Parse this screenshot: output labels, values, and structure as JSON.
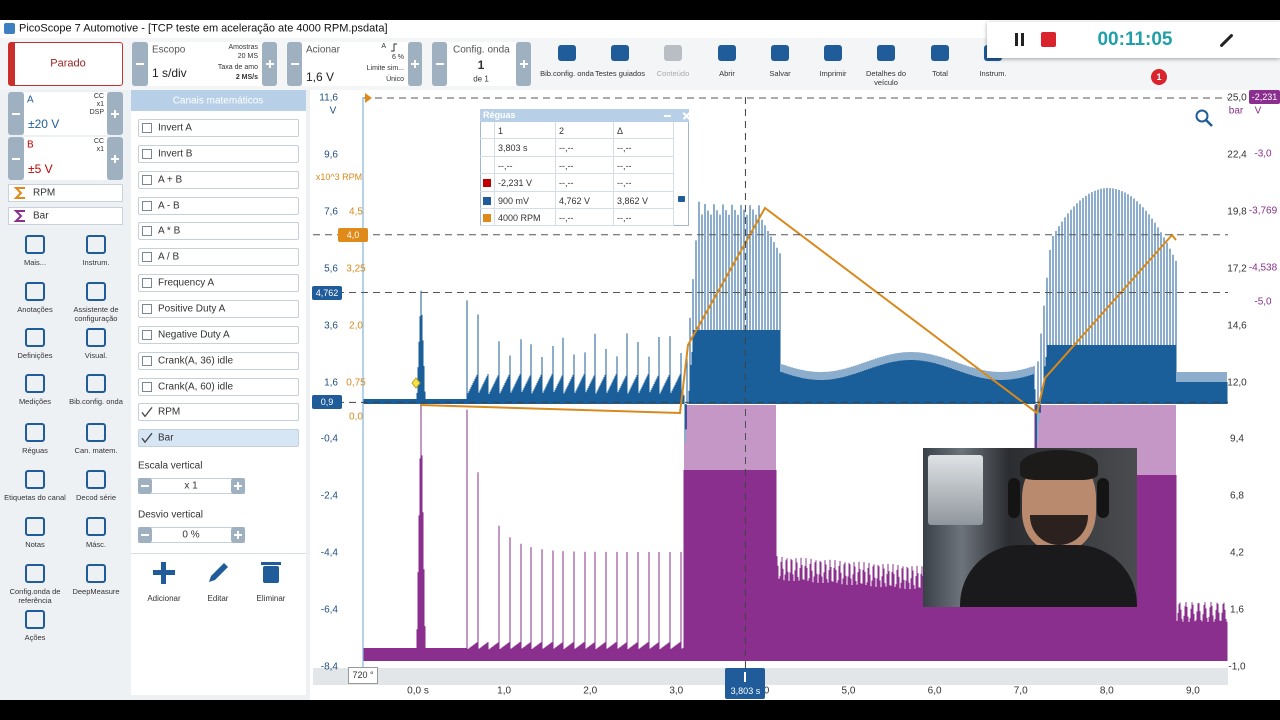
{
  "window": {
    "title": "PicoScope 7 Automotive - [TCP  teste em aceleração ate 4000 RPM.psdata]"
  },
  "recording": {
    "time": "00:11:05"
  },
  "toolbar": {
    "status": "Parado",
    "scope": {
      "label": "Escopo",
      "timebase": "1 s/div",
      "samples_label": "Amostras",
      "samples": "20 MS",
      "rate_label": "Taxa de amo",
      "rate": "2 MS/s"
    },
    "trigger": {
      "label": "Acionar",
      "channel": "A",
      "percent": "6 %",
      "level": "1,6 V",
      "limit": "Limite sim...",
      "mode": "Único"
    },
    "waveform": {
      "label": "Config. onda",
      "index": "1",
      "of": "de 1"
    },
    "buttons": [
      {
        "label": "Bib.config. onda"
      },
      {
        "label": "Testes guiados"
      },
      {
        "label": "Conteúdo",
        "disabled": true
      },
      {
        "label": "Abrir"
      },
      {
        "label": "Salvar"
      },
      {
        "label": "Imprimir"
      },
      {
        "label": "Detalhes do veículo"
      },
      {
        "label": "Total"
      },
      {
        "label": "Instrum."
      }
    ],
    "notifications": "1"
  },
  "channels": [
    {
      "name": "A",
      "coupling": "CC",
      "probe": "x1",
      "dsp": "DSP",
      "range": "±20 V",
      "color": "#1f5c99"
    },
    {
      "name": "B",
      "coupling": "CC",
      "probe": "x1",
      "range": "±5 V",
      "color": "#c00000"
    }
  ],
  "math_channels": [
    {
      "name": "RPM",
      "color": "#e08a1a"
    },
    {
      "name": "Bar",
      "color": "#8b2f8f"
    }
  ],
  "tools": [
    "Mais...",
    "Instrum.",
    "Anotações",
    "Assistente de configuração",
    "Definições",
    "Visual.",
    "Medições",
    "Bib.config. onda",
    "Réguas",
    "Can. matem.",
    "Etiquetas do canal",
    "Decod série",
    "Notas",
    "Másc.",
    "Config.onda de referência",
    "DeepMeasure",
    "Ações"
  ],
  "math_panel": {
    "title": "Canais matemáticos",
    "items": [
      {
        "label": "Invert A",
        "checked": false
      },
      {
        "label": "Invert B",
        "checked": false
      },
      {
        "label": "A + B",
        "checked": false
      },
      {
        "label": "A - B",
        "checked": false
      },
      {
        "label": "A * B",
        "checked": false
      },
      {
        "label": "A / B",
        "checked": false
      },
      {
        "label": "Frequency A",
        "checked": false
      },
      {
        "label": "Positive Duty A",
        "checked": false
      },
      {
        "label": "Negative Duty A",
        "checked": false
      },
      {
        "label": "Crank(A, 36) idle",
        "checked": false
      },
      {
        "label": "Crank(A, 60) idle",
        "checked": false
      },
      {
        "label": "RPM",
        "checked": true
      },
      {
        "label": "Bar",
        "checked": true,
        "selected": true
      }
    ],
    "vertical_scale_label": "Escala vertical",
    "vertical_scale": "x 1",
    "vertical_offset_label": "Desvio vertical",
    "vertical_offset": "0 %",
    "actions": [
      "Adicionar",
      "Editar",
      "Eliminar"
    ]
  },
  "scope_view": {
    "axis_a": {
      "unit": "V",
      "labels": [
        "11,6",
        "9,6",
        "7,6",
        "5,6",
        "3,6",
        "1,6",
        "-0,4",
        "-2,4",
        "-4,4",
        "-6,4",
        "-8,4"
      ]
    },
    "axis_rpm": {
      "unit": "x10^3 RPM",
      "labels": [
        "4,5",
        "3,25",
        "2,0",
        "0,75",
        "0,0"
      ]
    },
    "axis_bar": {
      "unit": "bar",
      "labels": [
        "25,0",
        "22,4",
        "19,8",
        "17,2",
        "14,6",
        "12,0",
        "9,4",
        "6,8",
        "4,2",
        "1,6",
        "-1,0"
      ]
    },
    "axis_b": {
      "unit": "V",
      "labels": [
        "-3,0",
        "-3,769",
        "-4,538",
        "-5,0"
      ]
    },
    "time_labels": [
      "0,0 s",
      "1,0",
      "2,0",
      "3,0",
      "4,0",
      "5,0",
      "6,0",
      "7,0",
      "8,0",
      "9,0"
    ],
    "markers": {
      "a_offset": "0,9",
      "a_ruler": "4,762",
      "rpm_ruler": "4,0",
      "b_ruler": "-2,231",
      "phase": "720 °",
      "time_ruler": "3,803 s"
    },
    "rulers": {
      "title": "Réguas",
      "header": [
        "1",
        "2",
        "Δ"
      ],
      "rows": [
        {
          "cells": [
            "3,803 s",
            "--,--",
            "--,--"
          ]
        },
        {
          "cells": [
            "--,--",
            "--,--",
            "--,--"
          ]
        },
        {
          "color": "#c00000",
          "cells": [
            "-2,231 V",
            "--,--",
            "--,--"
          ]
        },
        {
          "color": "#1f5c99",
          "cells": [
            "900 mV",
            "4,762 V",
            "3,862 V"
          ]
        },
        {
          "color": "#e08a1a",
          "cells": [
            "4000 RPM",
            "--,--",
            "--,--"
          ]
        }
      ]
    }
  }
}
